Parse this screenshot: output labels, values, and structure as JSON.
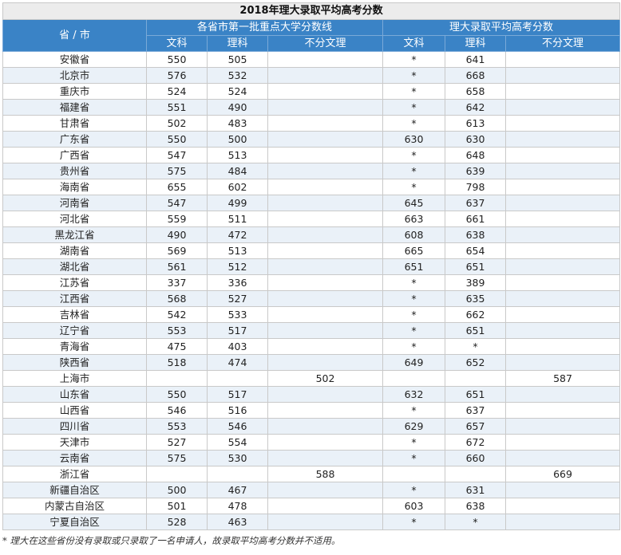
{
  "table": {
    "title": "2018年理大录取平均高考分数",
    "col_province": "省 / 市",
    "group1": "各省市第一批重点大学分数线",
    "group2": "理大录取平均高考分数",
    "sub_headers": [
      "文科",
      "理科",
      "不分文理",
      "文科",
      "理科",
      "不分文理"
    ],
    "rows": [
      [
        "安徽省",
        "550",
        "505",
        "",
        "*",
        "641",
        ""
      ],
      [
        "北京市",
        "576",
        "532",
        "",
        "*",
        "668",
        ""
      ],
      [
        "重庆市",
        "524",
        "524",
        "",
        "*",
        "658",
        ""
      ],
      [
        "福建省",
        "551",
        "490",
        "",
        "*",
        "642",
        ""
      ],
      [
        "甘肃省",
        "502",
        "483",
        "",
        "*",
        "613",
        ""
      ],
      [
        "广东省",
        "550",
        "500",
        "",
        "630",
        "630",
        ""
      ],
      [
        "广西省",
        "547",
        "513",
        "",
        "*",
        "648",
        ""
      ],
      [
        "贵州省",
        "575",
        "484",
        "",
        "*",
        "639",
        ""
      ],
      [
        "海南省",
        "655",
        "602",
        "",
        "*",
        "798",
        ""
      ],
      [
        "河南省",
        "547",
        "499",
        "",
        "645",
        "637",
        ""
      ],
      [
        "河北省",
        "559",
        "511",
        "",
        "663",
        "661",
        ""
      ],
      [
        "黑龙江省",
        "490",
        "472",
        "",
        "608",
        "638",
        ""
      ],
      [
        "湖南省",
        "569",
        "513",
        "",
        "665",
        "654",
        ""
      ],
      [
        "湖北省",
        "561",
        "512",
        "",
        "651",
        "651",
        ""
      ],
      [
        "江苏省",
        "337",
        "336",
        "",
        "*",
        "389",
        ""
      ],
      [
        "江西省",
        "568",
        "527",
        "",
        "*",
        "635",
        ""
      ],
      [
        "吉林省",
        "542",
        "533",
        "",
        "*",
        "662",
        ""
      ],
      [
        "辽宁省",
        "553",
        "517",
        "",
        "*",
        "651",
        ""
      ],
      [
        "青海省",
        "475",
        "403",
        "",
        "*",
        "*",
        ""
      ],
      [
        "陕西省",
        "518",
        "474",
        "",
        "649",
        "652",
        ""
      ],
      [
        "上海市",
        "",
        "",
        "502",
        "",
        "",
        "587"
      ],
      [
        "山东省",
        "550",
        "517",
        "",
        "632",
        "651",
        ""
      ],
      [
        "山西省",
        "546",
        "516",
        "",
        "*",
        "637",
        ""
      ],
      [
        "四川省",
        "553",
        "546",
        "",
        "629",
        "657",
        ""
      ],
      [
        "天津市",
        "527",
        "554",
        "",
        "*",
        "672",
        ""
      ],
      [
        "云南省",
        "575",
        "530",
        "",
        "*",
        "660",
        ""
      ],
      [
        "浙江省",
        "",
        "",
        "588",
        "",
        "",
        "669"
      ],
      [
        "新疆自治区",
        "500",
        "467",
        "",
        "*",
        "631",
        ""
      ],
      [
        "内蒙古自治区",
        "501",
        "478",
        "",
        "603",
        "638",
        ""
      ],
      [
        "宁夏自治区",
        "528",
        "463",
        "",
        "*",
        "*",
        ""
      ]
    ]
  },
  "footnote": "*   理大在这些省份没有录取或只录取了一名申请人，故录取平均高考分数并不适用。"
}
